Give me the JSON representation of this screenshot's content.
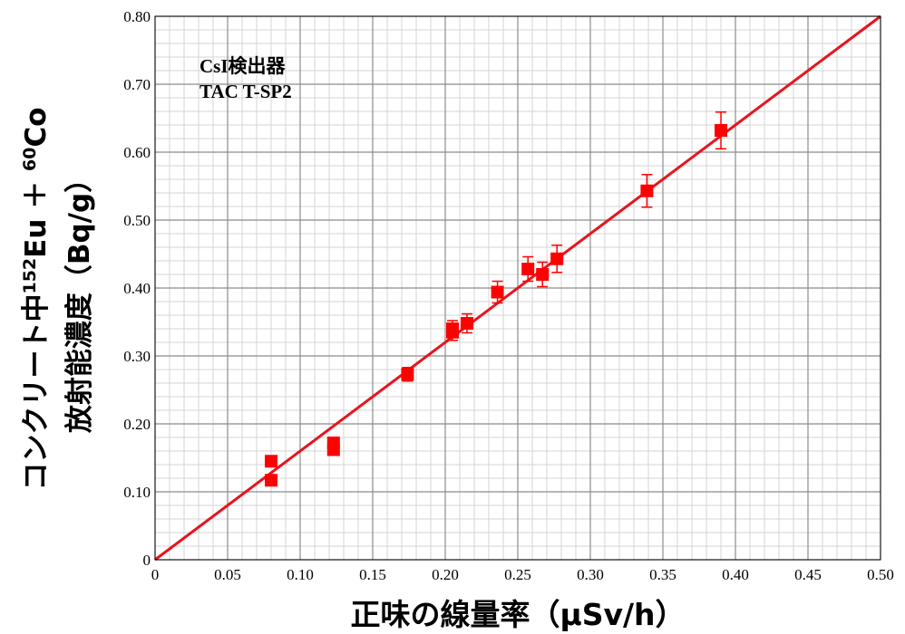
{
  "chart_data": {
    "type": "scatter",
    "xlabel": "正味の線量率（μSv/h）",
    "ylabel_line1": "コンクリート中",
    "ylabel_sup1": "152",
    "ylabel_eu": "Eu ＋ ",
    "ylabel_sup2": "60",
    "ylabel_co": "Co",
    "ylabel_line2": "放射能濃度（Bq/g）",
    "annotation_line1": "CsI検出器",
    "annotation_line2": "TAC T-SP2",
    "xlim": [
      0,
      0.5
    ],
    "ylim": [
      0,
      0.8
    ],
    "xticks": [
      "0",
      "0.05",
      "0.10",
      "0.15",
      "0.20",
      "0.25",
      "0.30",
      "0.35",
      "0.40",
      "0.45",
      "0.50"
    ],
    "yticks": [
      "0",
      "0.10",
      "0.20",
      "0.30",
      "0.40",
      "0.50",
      "0.60",
      "0.70",
      "0.80"
    ],
    "grid": true,
    "marker_color": "#ff0000",
    "fit_line_color": "#e8141e",
    "points": [
      {
        "x": 0.08,
        "y": 0.145,
        "err": 0.005
      },
      {
        "x": 0.08,
        "y": 0.117,
        "err": 0.005
      },
      {
        "x": 0.123,
        "y": 0.172,
        "err": 0.006
      },
      {
        "x": 0.123,
        "y": 0.162,
        "err": 0.006
      },
      {
        "x": 0.174,
        "y": 0.273,
        "err": 0.01
      },
      {
        "x": 0.205,
        "y": 0.34,
        "err": 0.012
      },
      {
        "x": 0.205,
        "y": 0.335,
        "err": 0.012
      },
      {
        "x": 0.215,
        "y": 0.348,
        "err": 0.014
      },
      {
        "x": 0.236,
        "y": 0.394,
        "err": 0.016
      },
      {
        "x": 0.257,
        "y": 0.428,
        "err": 0.018
      },
      {
        "x": 0.267,
        "y": 0.42,
        "err": 0.018
      },
      {
        "x": 0.277,
        "y": 0.443,
        "err": 0.02
      },
      {
        "x": 0.339,
        "y": 0.543,
        "err": 0.024
      },
      {
        "x": 0.39,
        "y": 0.632,
        "err": 0.027
      }
    ],
    "fit_line": {
      "x": [
        0,
        0.5
      ],
      "y": [
        0,
        0.8
      ]
    }
  }
}
